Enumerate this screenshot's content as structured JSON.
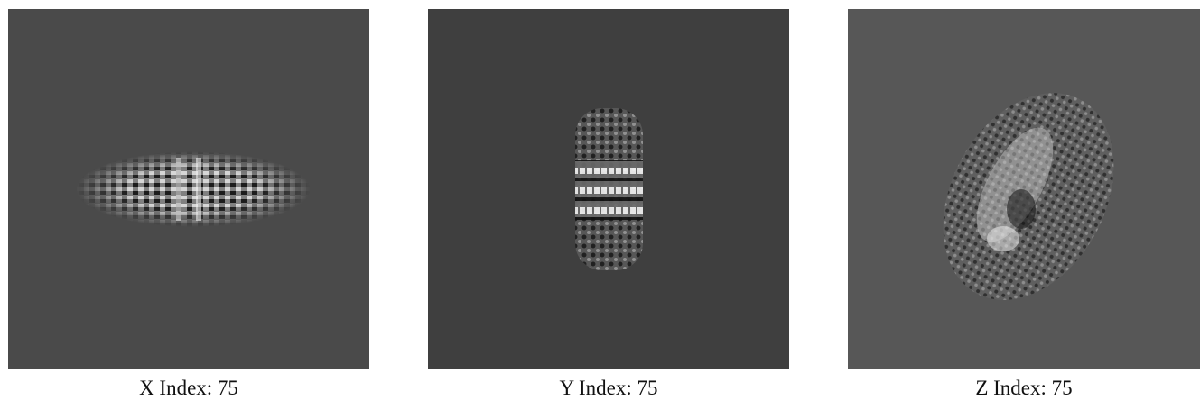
{
  "panels": [
    {
      "label": "X Index: 75"
    },
    {
      "label": "Y Index: 75"
    },
    {
      "label": "Z Index: 75"
    }
  ]
}
